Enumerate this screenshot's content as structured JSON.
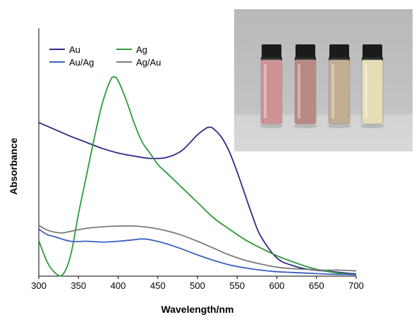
{
  "chart_data": {
    "type": "line",
    "title": "",
    "xlabel": "Wavelength/nm",
    "ylabel": "Absorbance",
    "xlim": [
      300,
      700
    ],
    "ylim": [
      0,
      1
    ],
    "x_ticks": [
      "300",
      "350",
      "400",
      "450",
      "500",
      "550",
      "600",
      "650",
      "700"
    ],
    "y_ticks_shown": false,
    "grid": false,
    "legend_position": "top-left",
    "series": [
      {
        "name": "Au",
        "color": "#2d2a86",
        "x": [
          300,
          320,
          340,
          360,
          380,
          400,
          420,
          440,
          460,
          480,
          500,
          510,
          515,
          520,
          530,
          540,
          550,
          560,
          570,
          580,
          600,
          620,
          640,
          660,
          680,
          700
        ],
        "y": [
          0.8,
          0.764,
          0.728,
          0.696,
          0.664,
          0.64,
          0.624,
          0.612,
          0.616,
          0.652,
          0.736,
          0.768,
          0.776,
          0.768,
          0.724,
          0.648,
          0.54,
          0.42,
          0.3,
          0.2,
          0.088,
          0.048,
          0.028,
          0.02,
          0.012,
          0.004
        ]
      },
      {
        "name": "Ag",
        "color": "#2d9a3a",
        "x": [
          300,
          310,
          320,
          330,
          340,
          350,
          360,
          370,
          380,
          390,
          395,
          400,
          410,
          420,
          430,
          440,
          450,
          460,
          480,
          500,
          520,
          540,
          560,
          580,
          600,
          620,
          640,
          660,
          680,
          700
        ],
        "y": [
          0.18,
          0.072,
          0.012,
          0.0,
          0.1,
          0.32,
          0.52,
          0.72,
          0.9,
          1.02,
          1.04,
          1.02,
          0.92,
          0.8,
          0.7,
          0.64,
          0.58,
          0.54,
          0.46,
          0.38,
          0.3,
          0.24,
          0.184,
          0.14,
          0.1,
          0.068,
          0.04,
          0.02,
          0.008,
          0.0
        ]
      },
      {
        "name": "Au/Ag",
        "color": "#3b5fc0",
        "x": [
          300,
          310,
          320,
          340,
          360,
          380,
          400,
          420,
          430,
          440,
          460,
          480,
          500,
          520,
          540,
          560,
          580,
          600,
          620,
          640,
          660,
          680,
          700
        ],
        "y": [
          0.24,
          0.212,
          0.2,
          0.176,
          0.176,
          0.172,
          0.176,
          0.184,
          0.188,
          0.184,
          0.164,
          0.136,
          0.104,
          0.076,
          0.052,
          0.036,
          0.024,
          0.016,
          0.012,
          0.008,
          0.004,
          0.002,
          0.0
        ]
      },
      {
        "name": "Ag/Au",
        "color": "#7a7a7a",
        "x": [
          300,
          310,
          320,
          330,
          340,
          360,
          380,
          400,
          420,
          440,
          460,
          480,
          500,
          520,
          540,
          560,
          580,
          600,
          620,
          640,
          660,
          680,
          700
        ],
        "y": [
          0.26,
          0.236,
          0.224,
          0.22,
          0.228,
          0.244,
          0.252,
          0.256,
          0.256,
          0.248,
          0.232,
          0.208,
          0.176,
          0.14,
          0.104,
          0.076,
          0.056,
          0.04,
          0.032,
          0.028,
          0.024,
          0.024,
          0.02
        ]
      }
    ]
  },
  "inset_photo": {
    "vials": [
      {
        "liquid_color": "#cf9294"
      },
      {
        "liquid_color": "#b98984"
      },
      {
        "liquid_color": "#c3ad90"
      },
      {
        "liquid_color": "#e6dfb6"
      }
    ],
    "cap_color": "#1b1b1b",
    "background_color": "#c3c3c3"
  }
}
